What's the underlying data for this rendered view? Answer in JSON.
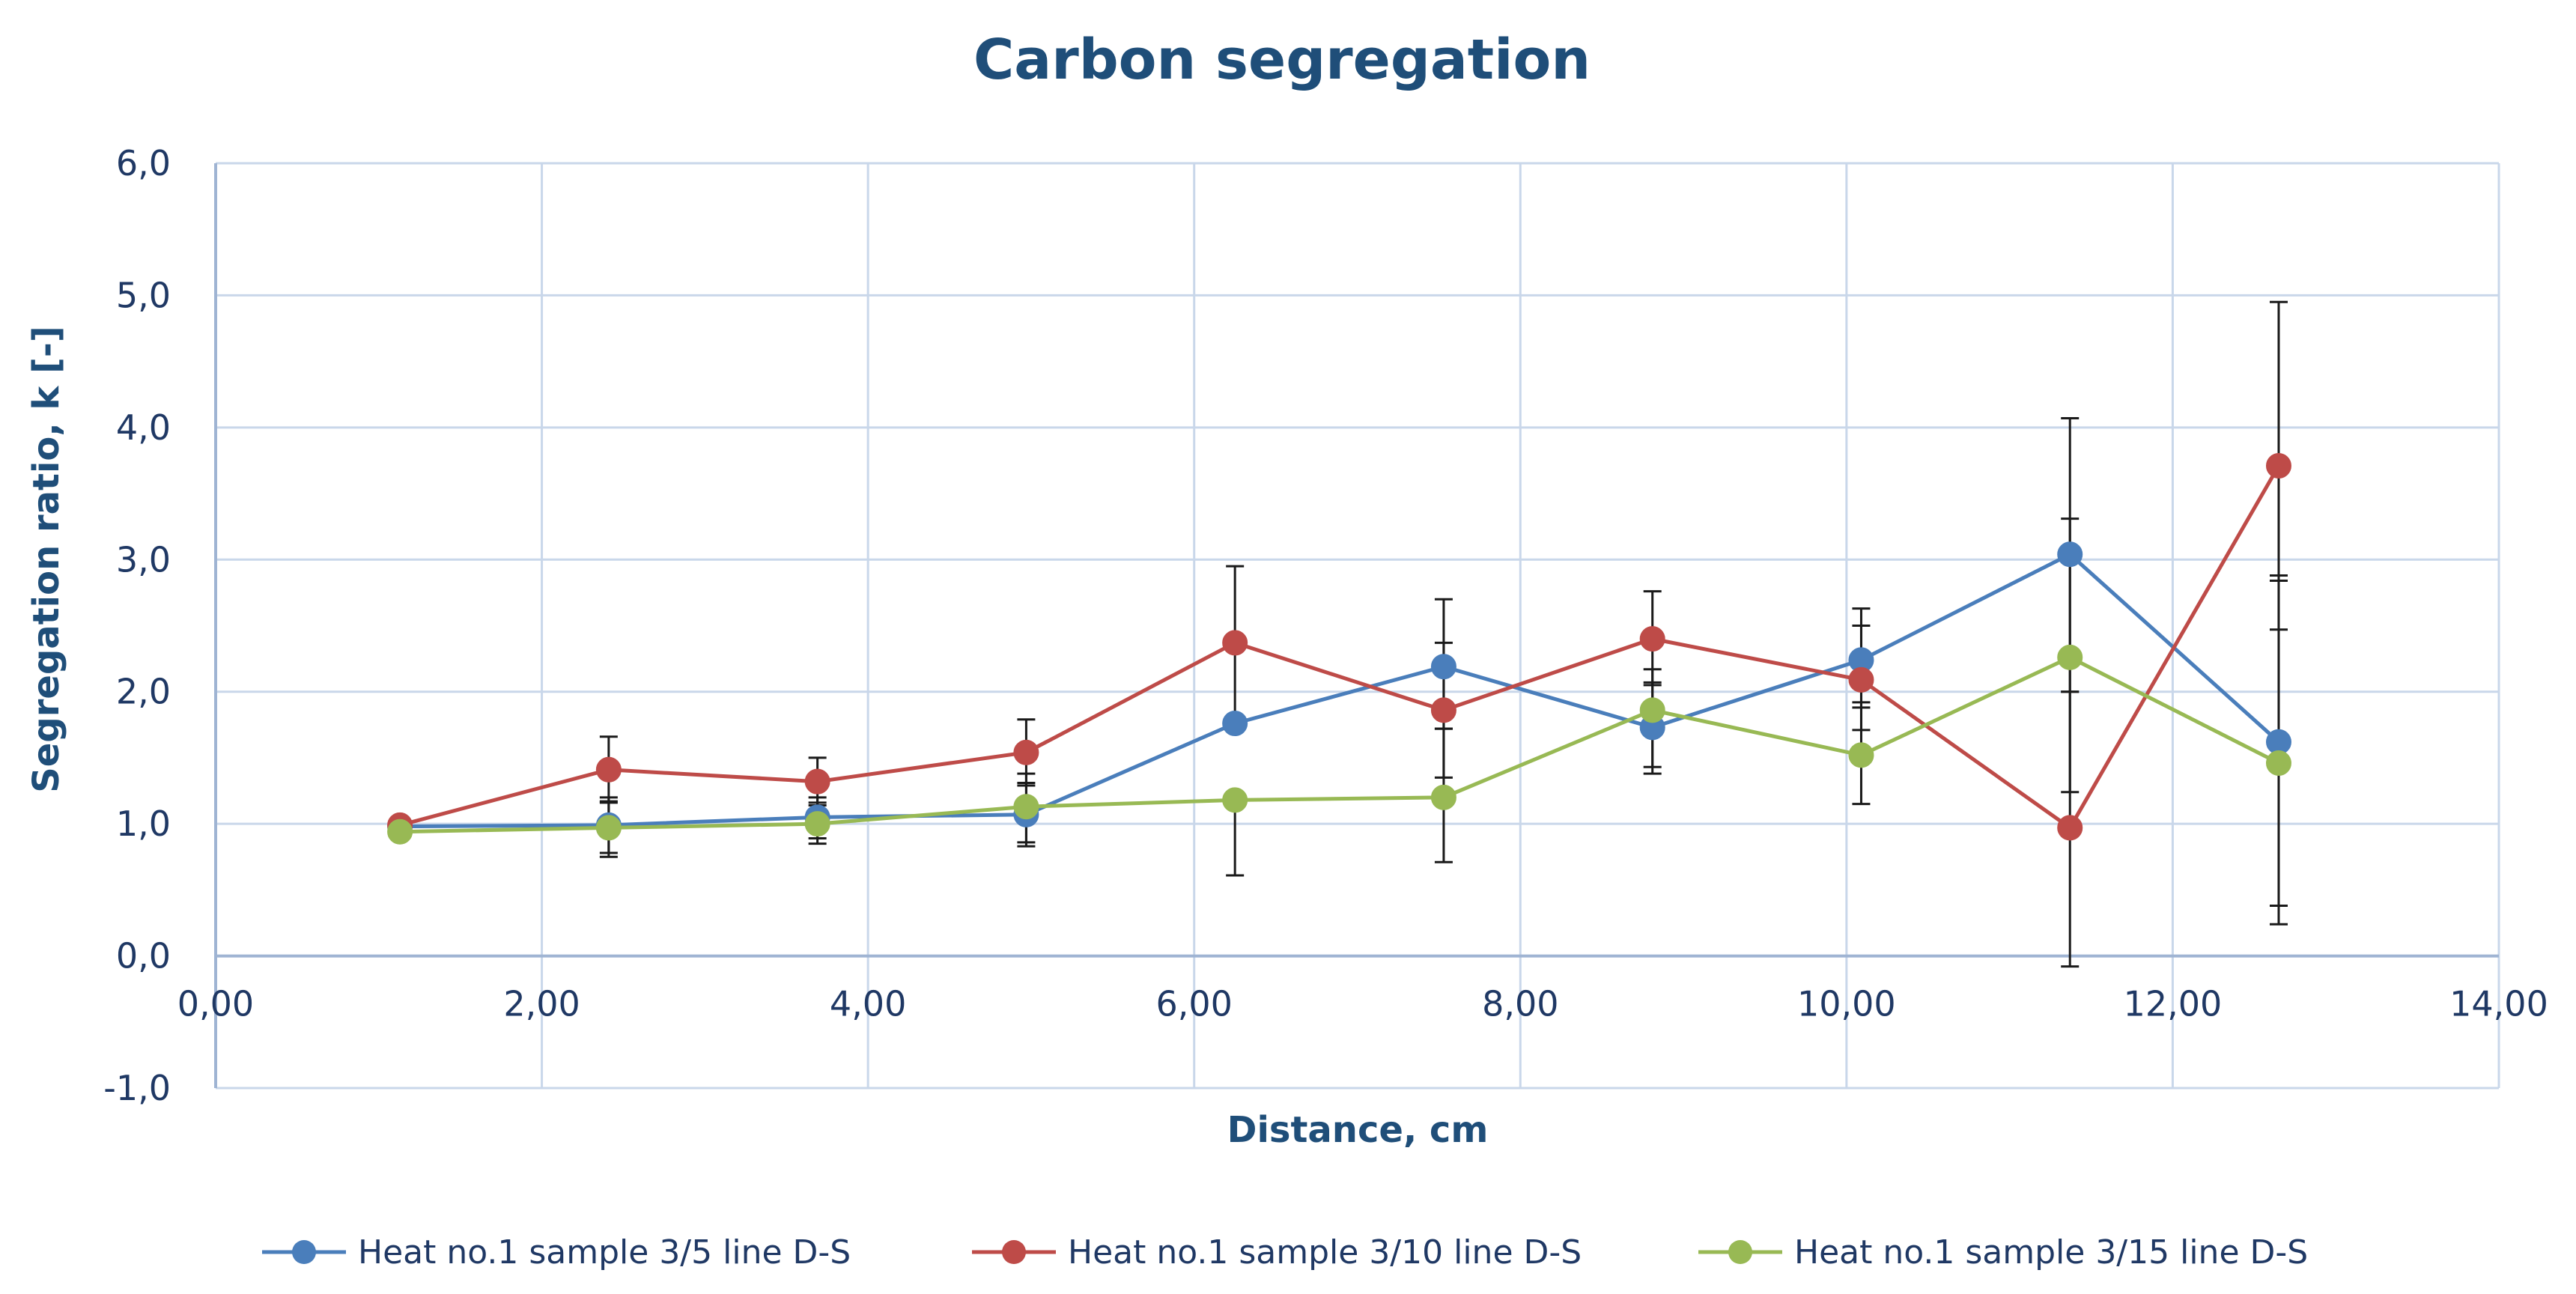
{
  "chart_data": {
    "type": "scatter",
    "title": "Carbon segregation",
    "xlabel": "Distance, cm",
    "ylabel": "Segregation ratio, k [-]",
    "xlim": [
      0,
      14
    ],
    "ylim": [
      -1,
      6
    ],
    "x_ticks": [
      0,
      2,
      4,
      6,
      8,
      10,
      12,
      14
    ],
    "x_tick_labels": [
      "0,00",
      "2,00",
      "4,00",
      "6,00",
      "8,00",
      "10,00",
      "12,00",
      "14,00"
    ],
    "y_ticks": [
      -1,
      0,
      1,
      2,
      3,
      4,
      5,
      6
    ],
    "y_tick_labels": [
      "-1,0",
      "0,0",
      "1,0",
      "2,0",
      "3,0",
      "4,0",
      "5,0",
      "6,0"
    ],
    "grid": true,
    "legend_position": "bottom",
    "series": [
      {
        "name": "Heat no.1 sample 3/5 line D-S",
        "color": "#4a7ebb",
        "x": [
          1.13,
          2.41,
          3.69,
          4.97,
          6.25,
          7.53,
          8.81,
          10.09,
          11.37,
          12.65
        ],
        "y": [
          0.98,
          0.99,
          1.05,
          1.07,
          1.76,
          2.19,
          1.73,
          2.24,
          3.04,
          1.62
        ],
        "err_low": [
          0.98,
          0.78,
          0.89,
          0.86,
          1.76,
          1.72,
          1.38,
          1.71,
          2.0,
          0.38
        ],
        "err_high": [
          0.98,
          1.2,
          1.2,
          1.31,
          1.76,
          2.7,
          2.07,
          2.63,
          4.07,
          2.84
        ]
      },
      {
        "name": "Heat no.1 sample 3/10 line D-S",
        "color": "#be4b48",
        "x": [
          1.13,
          2.41,
          3.69,
          4.97,
          6.25,
          7.53,
          8.81,
          10.09,
          11.37,
          12.65
        ],
        "y": [
          0.99,
          1.41,
          1.32,
          1.54,
          2.37,
          1.86,
          2.4,
          2.09,
          0.97,
          3.71
        ],
        "err_low": [
          0.99,
          1.16,
          1.14,
          1.29,
          1.79,
          1.35,
          2.05,
          1.88,
          -0.08,
          2.47
        ],
        "err_high": [
          0.99,
          1.66,
          1.5,
          1.79,
          2.95,
          2.37,
          2.76,
          2.5,
          2.0,
          4.95
        ]
      },
      {
        "name": "Heat no.1 sample 3/15 line D-S",
        "color": "#98b954",
        "x": [
          1.13,
          2.41,
          3.69,
          4.97,
          6.25,
          7.53,
          8.81,
          10.09,
          11.37,
          12.65
        ],
        "y": [
          0.94,
          0.97,
          1.0,
          1.13,
          1.18,
          1.2,
          1.86,
          1.52,
          2.26,
          1.46
        ],
        "err_low": [
          0.94,
          0.75,
          0.85,
          0.83,
          0.61,
          0.71,
          1.43,
          1.15,
          1.24,
          0.24
        ],
        "err_high": [
          0.94,
          1.17,
          1.16,
          1.38,
          1.18,
          1.72,
          2.17,
          1.92,
          3.31,
          2.88
        ]
      }
    ]
  }
}
